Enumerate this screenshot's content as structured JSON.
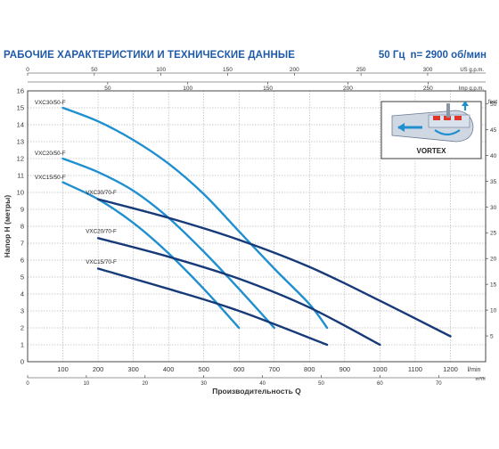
{
  "header": {
    "title": "РАБОЧИЕ ХАРАКТЕРИСТИКИ И ТЕХНИЧЕСКИЕ ДАННЫЕ",
    "frequency": "50 Гц",
    "speed": "n= 2900 об/мин"
  },
  "colors": {
    "vxc50": "#1f8fd0",
    "vxc70": "#173a78",
    "grid": "#9a9a9a",
    "axis": "#333333",
    "title": "#1e5aa8"
  },
  "badge": {
    "label": "VORTEX",
    "icon": "vortex-impeller-icon"
  },
  "chart_data": {
    "type": "line",
    "xlabel": "Производительность Q",
    "ylabel": "Напор H (метры)",
    "xlim": [
      0,
      1300
    ],
    "ylim": [
      0,
      16
    ],
    "x_ticks": [
      100,
      200,
      300,
      400,
      500,
      600,
      700,
      800,
      900,
      1000,
      1100,
      1200
    ],
    "x_unit": "l/min",
    "y_ticks": [
      0,
      1,
      2,
      3,
      4,
      5,
      6,
      7,
      8,
      9,
      10,
      11,
      12,
      13,
      14,
      15,
      16
    ],
    "grid": true,
    "secondary_axes": {
      "us_gpm": {
        "unit": "US g.p.m.",
        "ticks": [
          0,
          50,
          100,
          150,
          200,
          250,
          300
        ],
        "factor": 3.785
      },
      "imp_gpm": {
        "unit": "Imp g.p.m.",
        "ticks": [
          50,
          100,
          150,
          200,
          250
        ],
        "factor": 4.546
      },
      "m3h": {
        "unit": "m³/h",
        "ticks": [
          0,
          10,
          20,
          30,
          40,
          50,
          60,
          70
        ],
        "factor": 16.667
      },
      "feet": {
        "unit": "feet",
        "ticks": [
          5,
          10,
          15,
          20,
          25,
          30,
          35,
          40,
          45,
          50
        ],
        "factor": 0.3048
      }
    },
    "series": [
      {
        "name": "VXC30/50-F",
        "group": "vxc50",
        "label_at": [
          20,
          15.2
        ],
        "points": [
          [
            100,
            15.0
          ],
          [
            200,
            14.2
          ],
          [
            300,
            13.1
          ],
          [
            400,
            11.7
          ],
          [
            500,
            9.9
          ],
          [
            600,
            7.7
          ],
          [
            700,
            5.5
          ],
          [
            800,
            3.4
          ],
          [
            850,
            2.0
          ]
        ]
      },
      {
        "name": "VXC20/50-F",
        "group": "vxc50",
        "label_at": [
          20,
          12.2
        ],
        "points": [
          [
            100,
            12.0
          ],
          [
            200,
            11.2
          ],
          [
            300,
            10.1
          ],
          [
            400,
            8.5
          ],
          [
            500,
            6.5
          ],
          [
            600,
            4.3
          ],
          [
            700,
            2.0
          ]
        ]
      },
      {
        "name": "VXC15/50-F",
        "group": "vxc50",
        "label_at": [
          20,
          10.8
        ],
        "points": [
          [
            100,
            10.6
          ],
          [
            200,
            9.6
          ],
          [
            300,
            8.2
          ],
          [
            400,
            6.4
          ],
          [
            500,
            4.3
          ],
          [
            600,
            2.0
          ]
        ]
      },
      {
        "name": "VXC30/70-F",
        "group": "vxc70",
        "label_at": [
          165,
          9.9
        ],
        "points": [
          [
            200,
            9.6
          ],
          [
            400,
            8.5
          ],
          [
            600,
            7.2
          ],
          [
            800,
            5.6
          ],
          [
            1000,
            3.6
          ],
          [
            1200,
            1.5
          ]
        ]
      },
      {
        "name": "VXC20/70-F",
        "group": "vxc70",
        "label_at": [
          165,
          7.6
        ],
        "points": [
          [
            200,
            7.3
          ],
          [
            400,
            6.2
          ],
          [
            600,
            4.9
          ],
          [
            800,
            3.2
          ],
          [
            1000,
            1.0
          ]
        ]
      },
      {
        "name": "VXC15/70-F",
        "group": "vxc70",
        "label_at": [
          165,
          5.8
        ],
        "points": [
          [
            200,
            5.5
          ],
          [
            400,
            4.3
          ],
          [
            600,
            3.0
          ],
          [
            850,
            1.0
          ]
        ]
      }
    ]
  }
}
